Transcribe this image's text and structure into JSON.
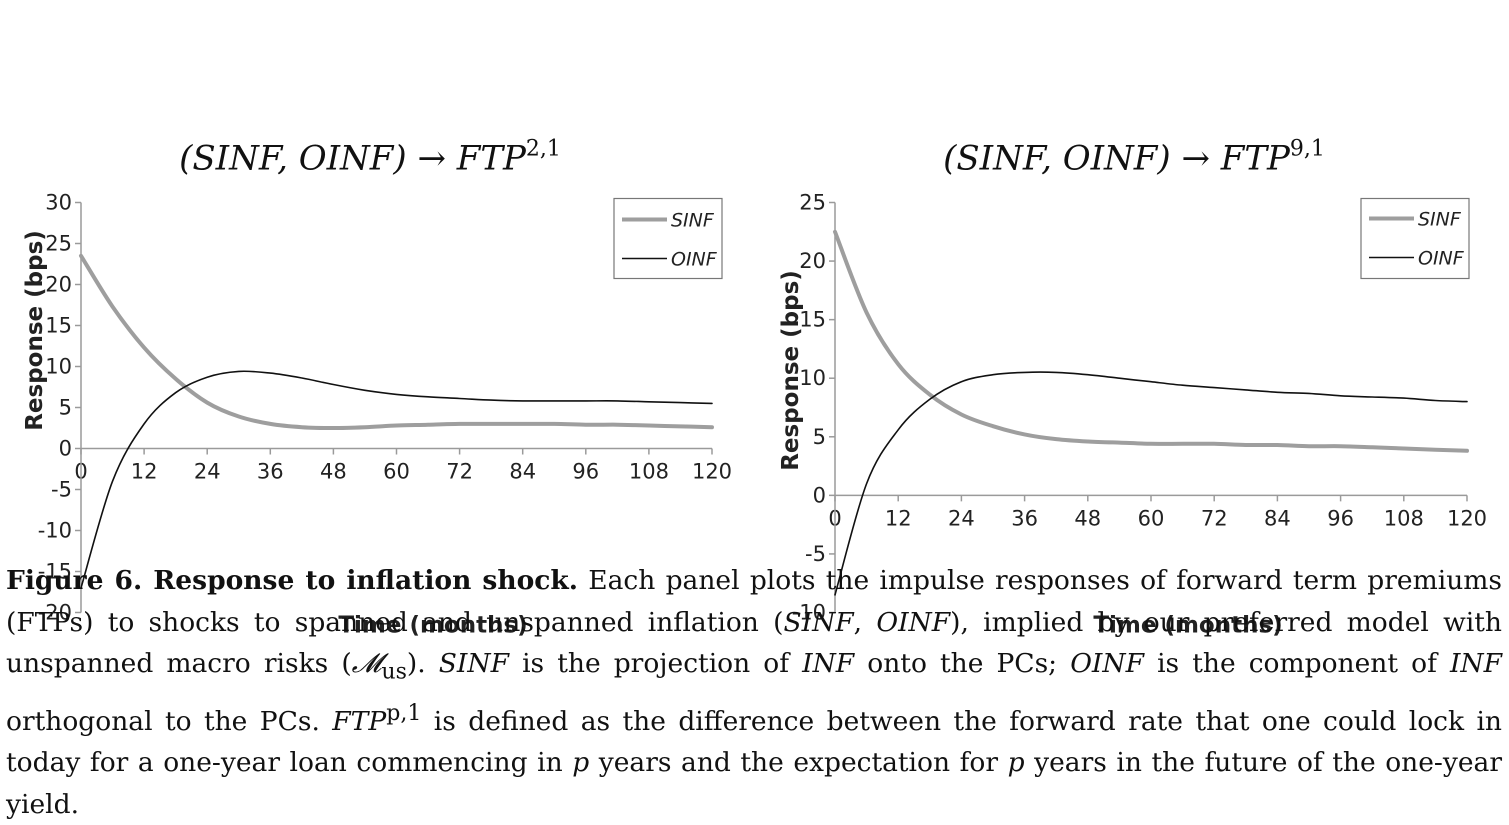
{
  "panels": [
    {
      "title": "(SINF, OINF) → FTP",
      "title_sup": "2,1",
      "ylabel": "Response (bps)",
      "xlabel": "Time (months)",
      "xticks": [
        0,
        12,
        24,
        36,
        48,
        60,
        72,
        84,
        96,
        108,
        120
      ],
      "yticks": [
        30,
        25,
        20,
        15,
        10,
        5,
        0,
        -5,
        -10,
        -15,
        -20
      ],
      "legend": [
        "SINF",
        "OINF"
      ]
    },
    {
      "title": "(SINF, OINF) → FTP",
      "title_sup": "9,1",
      "ylabel": "Response (bps)",
      "xlabel": "Time (months)",
      "xticks": [
        0,
        12,
        24,
        36,
        48,
        60,
        72,
        84,
        96,
        108,
        120
      ],
      "yticks": [
        25,
        20,
        15,
        10,
        5,
        0,
        -5,
        -10
      ],
      "legend": [
        "SINF",
        "OINF"
      ]
    }
  ],
  "chart_data": [
    {
      "type": "line",
      "title": "(SINF, OINF) → FTP^{2,1}",
      "xlabel": "Time (months)",
      "ylabel": "Response (bps)",
      "xlim": [
        0,
        120
      ],
      "ylim": [
        -20,
        30
      ],
      "legend_position": "top-right",
      "grid": false,
      "x": [
        0,
        6,
        12,
        18,
        24,
        30,
        36,
        42,
        48,
        54,
        60,
        66,
        72,
        78,
        84,
        90,
        96,
        102,
        108,
        114,
        120
      ],
      "series": [
        {
          "name": "SINF",
          "color": "#9e9e9e",
          "values": [
            23.5,
            17.3,
            12.3,
            8.5,
            5.6,
            3.9,
            3.0,
            2.6,
            2.5,
            2.6,
            2.8,
            2.9,
            3.0,
            3.0,
            3.0,
            3.0,
            2.9,
            2.9,
            2.8,
            2.7,
            2.6
          ]
        },
        {
          "name": "OINF",
          "color": "#111111",
          "values": [
            -17.0,
            -4.0,
            3.0,
            6.8,
            8.7,
            9.4,
            9.2,
            8.6,
            7.8,
            7.1,
            6.6,
            6.3,
            6.1,
            5.9,
            5.8,
            5.8,
            5.8,
            5.8,
            5.7,
            5.6,
            5.5
          ]
        }
      ]
    },
    {
      "type": "line",
      "title": "(SINF, OINF) → FTP^{9,1}",
      "xlabel": "Time (months)",
      "ylabel": "Response (bps)",
      "xlim": [
        0,
        120
      ],
      "ylim": [
        -10,
        25
      ],
      "legend_position": "top-right",
      "grid": false,
      "x": [
        0,
        6,
        12,
        18,
        24,
        30,
        36,
        42,
        48,
        54,
        60,
        66,
        72,
        78,
        84,
        90,
        96,
        102,
        108,
        114,
        120
      ],
      "series": [
        {
          "name": "SINF",
          "color": "#9e9e9e",
          "values": [
            22.5,
            15.6,
            11.2,
            8.6,
            6.9,
            5.9,
            5.2,
            4.8,
            4.6,
            4.5,
            4.4,
            4.4,
            4.4,
            4.3,
            4.3,
            4.2,
            4.2,
            4.1,
            4.0,
            3.9,
            3.8
          ]
        },
        {
          "name": "OINF",
          "color": "#111111",
          "values": [
            -8.5,
            1.0,
            5.6,
            8.2,
            9.7,
            10.3,
            10.5,
            10.5,
            10.3,
            10.0,
            9.7,
            9.4,
            9.2,
            9.0,
            8.8,
            8.7,
            8.5,
            8.4,
            8.3,
            8.1,
            8.0
          ]
        }
      ]
    }
  ],
  "caption": {
    "lead": "Figure 6.  Response to inflation shock.",
    "text": "Each panel plots the impulse responses of forward term premiums (FTPs) to shocks to spanned and unspanned inflation (",
    "sinf": "SINF",
    "comma": ", ",
    "oinf": "OINF",
    "text2": "), implied by our preferred model with unspanned macro risks (",
    "model": "𝓜",
    "model_sub": "us",
    "text3": "). ",
    "sinf2": "SINF",
    "text4": " is the projection of ",
    "inf1": "INF",
    "text5": " onto the PCs; ",
    "oinf2": "OINF",
    "text6": " is the component of ",
    "inf2": "INF",
    "text7": " orthogonal to the PCs. ",
    "ftp": "FTP",
    "ftp_sup": "p,1",
    "text8": " is defined as the difference between the forward rate that one could lock in today for a one-year loan commencing in ",
    "p1": "p",
    "text9": " years and the expectation for ",
    "p2": "p",
    "text10": " years in the future of the one-year yield."
  }
}
